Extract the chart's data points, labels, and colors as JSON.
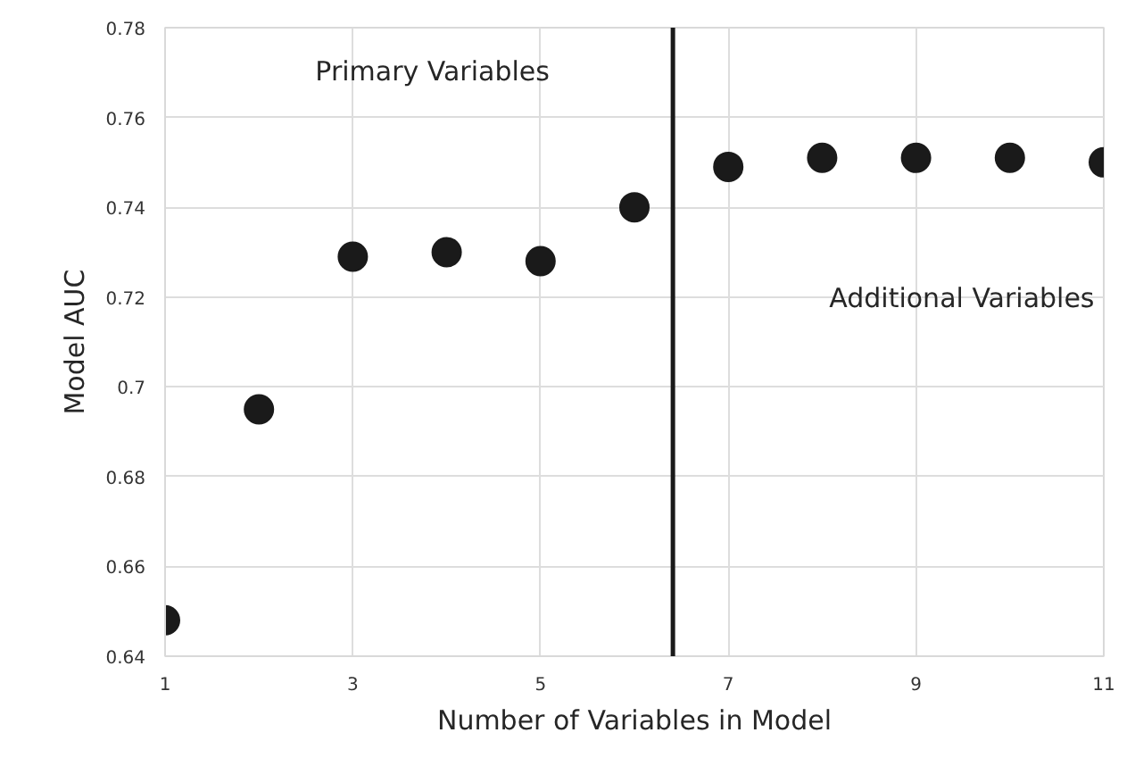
{
  "chart_data": {
    "type": "scatter",
    "xlabel": "Number of Variables in Model",
    "ylabel": "Model AUC",
    "x": [
      1,
      2,
      3,
      4,
      5,
      6,
      7,
      8,
      9,
      10,
      11
    ],
    "series": [
      {
        "color": "#1a1a1a",
        "values": [
          0.648,
          0.695,
          0.729,
          0.73,
          0.728,
          0.74,
          0.749,
          0.751,
          0.751,
          0.751,
          0.75
        ]
      }
    ],
    "xlim": [
      1,
      11
    ],
    "xticks": [
      1,
      3,
      5,
      7,
      9,
      11
    ],
    "ylim": [
      0.64,
      0.78
    ],
    "yticks": [
      0.64,
      0.66,
      0.68,
      {
        "value": 0.7,
        "label": "0.7"
      },
      0.72,
      0.74,
      0.76,
      0.78
    ],
    "ref_lines": [
      {
        "axis": "x",
        "value": 6.41,
        "color": "#1a1a1a"
      }
    ],
    "annotations": [
      "Primary Variables",
      "Additional Variables"
    ],
    "grid": true,
    "marker": "circle"
  }
}
